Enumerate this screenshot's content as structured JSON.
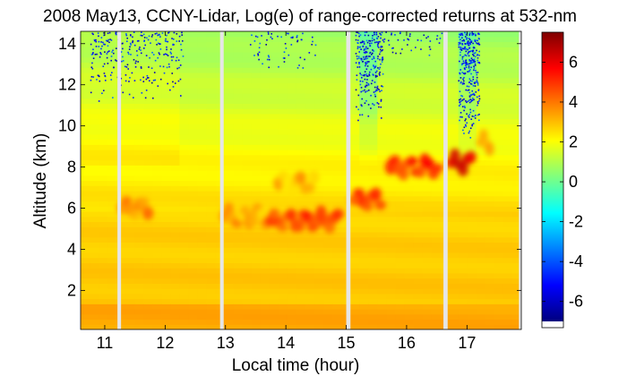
{
  "chart_data": {
    "type": "heatmap",
    "title": "2008 May13, CCNY-Lidar, Log(e) of range-corrected returns at 532-nm",
    "xlabel": "Local time (hour)",
    "ylabel": "Altitude (km)",
    "xlim": [
      10.6,
      17.9
    ],
    "ylim": [
      0.1,
      14.6
    ],
    "xticks": [
      11,
      12,
      13,
      14,
      15,
      16,
      17
    ],
    "yticks": [
      2,
      4,
      6,
      8,
      10,
      12,
      14
    ],
    "colorbar": {
      "range": [
        -7,
        7.5
      ],
      "ticks": [
        6,
        4,
        2,
        0,
        -2,
        -4,
        -6
      ],
      "colormap": "jet"
    },
    "data_gaps_hours": [
      {
        "start": 11.21,
        "end": 11.27
      },
      {
        "start": 12.91,
        "end": 12.97
      },
      {
        "start": 15.0,
        "end": 15.07
      },
      {
        "start": 16.61,
        "end": 16.68
      },
      {
        "start": 17.86,
        "end": 17.9
      }
    ],
    "aerosol_layers": [
      {
        "t_start": 11.25,
        "t_end": 11.75,
        "alt_km": 6.0,
        "value": 4.5
      },
      {
        "t_start": 12.95,
        "t_end": 13.7,
        "alt_km": 5.6,
        "value": 4.0
      },
      {
        "t_start": 13.7,
        "t_end": 14.9,
        "alt_km": 5.4,
        "value": 5.5
      },
      {
        "t_start": 13.85,
        "t_end": 14.5,
        "alt_km": 7.2,
        "value": 3.8
      },
      {
        "t_start": 15.1,
        "t_end": 15.6,
        "alt_km": 6.4,
        "value": 6.0
      },
      {
        "t_start": 15.7,
        "t_end": 16.55,
        "alt_km": 8.0,
        "value": 5.8
      },
      {
        "t_start": 16.7,
        "t_end": 17.1,
        "alt_km": 8.2,
        "value": 6.5
      },
      {
        "t_start": 17.2,
        "t_end": 17.4,
        "alt_km": 9.2,
        "value": 4.5
      }
    ]
  }
}
